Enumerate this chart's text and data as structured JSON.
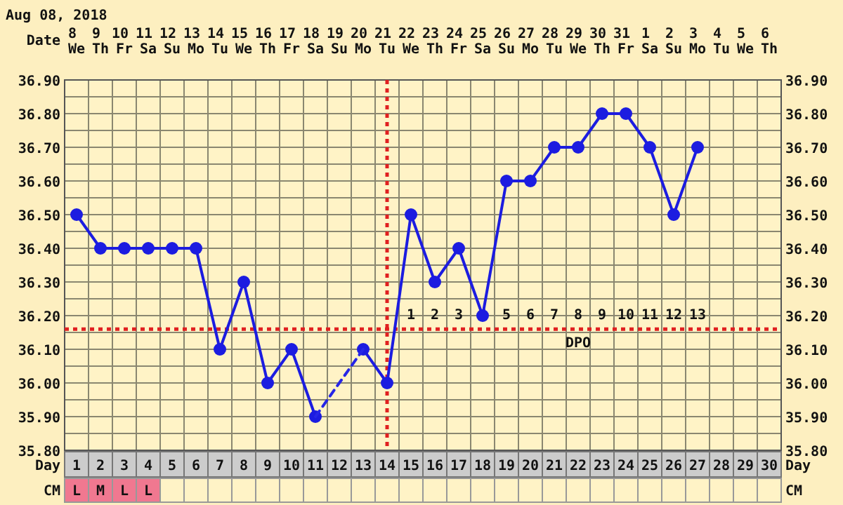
{
  "chart_data": {
    "type": "line",
    "title": "Aug 08, 2018",
    "xlabel": "Day",
    "x2label": "Date",
    "x": [
      1,
      2,
      3,
      4,
      5,
      6,
      7,
      8,
      9,
      10,
      11,
      12,
      13,
      14,
      15,
      16,
      17,
      18,
      19,
      20,
      21,
      22,
      23,
      24,
      25,
      26,
      27
    ],
    "xlim": [
      0.5,
      30.5
    ],
    "xticks": [
      1,
      2,
      3,
      4,
      5,
      6,
      7,
      8,
      9,
      10,
      11,
      12,
      13,
      14,
      15,
      16,
      17,
      18,
      19,
      20,
      21,
      22,
      23,
      24,
      25,
      26,
      27,
      28,
      29,
      30
    ],
    "x2lim": [
      "2018-08-07T12:00",
      "2018-09-06T12:00"
    ],
    "x2ticks": [
      {
        "value": "2018-08-08",
        "label": "8\nWe"
      },
      {
        "value": "2018-08-09",
        "label": "9\nTh"
      },
      {
        "value": "2018-08-10",
        "label": "10\nFr"
      },
      {
        "value": "2018-08-11",
        "label": "11\nSa"
      },
      {
        "value": "2018-08-12",
        "label": "12\nSu"
      },
      {
        "value": "2018-08-13",
        "label": "13\nMo"
      },
      {
        "value": "2018-08-14",
        "label": "14\nTu"
      },
      {
        "value": "2018-08-15",
        "label": "15\nWe"
      },
      {
        "value": "2018-08-16",
        "label": "16\nTh"
      },
      {
        "value": "2018-08-17",
        "label": "17\nFr"
      },
      {
        "value": "2018-08-18",
        "label": "18\nSa"
      },
      {
        "value": "2018-08-19",
        "label": "19\nSu"
      },
      {
        "value": "2018-08-20",
        "label": "20\nMo"
      },
      {
        "value": "2018-08-21",
        "label": "21\nTu"
      },
      {
        "value": "2018-08-22",
        "label": "22\nWe"
      },
      {
        "value": "2018-08-23",
        "label": "23\nTh"
      },
      {
        "value": "2018-08-24",
        "label": "24\nFr"
      },
      {
        "value": "2018-08-25",
        "label": "25\nSa"
      },
      {
        "value": "2018-08-26",
        "label": "26\nSu"
      },
      {
        "value": "2018-08-27",
        "label": "27\nMo"
      },
      {
        "value": "2018-08-28",
        "label": "28\nTu"
      },
      {
        "value": "2018-08-29",
        "label": "29\nWe"
      },
      {
        "value": "2018-08-30",
        "label": "30\nTh"
      },
      {
        "value": "2018-08-31",
        "label": "31\nFr"
      },
      {
        "value": "2018-09-01",
        "label": "1\nSa"
      },
      {
        "value": "2018-09-02",
        "label": "2\nSu"
      },
      {
        "value": "2018-09-03",
        "label": "3\nMo"
      },
      {
        "value": "2018-09-04",
        "label": "4\nTu"
      },
      {
        "value": "2018-09-05",
        "label": "5\nWe"
      },
      {
        "value": "2018-09-06",
        "label": "6\nTh"
      }
    ],
    "ylim": [
      35.8,
      36.9
    ],
    "yticks": [
      {
        "value": 35.8,
        "label": "35.80"
      },
      {
        "value": 35.85,
        "label": null
      },
      {
        "value": 35.9,
        "label": "35.90"
      },
      {
        "value": 35.95,
        "label": null
      },
      {
        "value": 36.0,
        "label": "36.00"
      },
      {
        "value": 36.05,
        "label": null
      },
      {
        "value": 36.1,
        "label": "36.10"
      },
      {
        "value": 36.15,
        "label": null
      },
      {
        "value": 36.2,
        "label": "36.20"
      },
      {
        "value": 36.25,
        "label": null
      },
      {
        "value": 36.3,
        "label": "36.30"
      },
      {
        "value": 36.35,
        "label": null
      },
      {
        "value": 36.4,
        "label": "36.40"
      },
      {
        "value": 36.45,
        "label": null
      },
      {
        "value": 36.5,
        "label": "36.50"
      },
      {
        "value": 36.55,
        "label": null
      },
      {
        "value": 36.6,
        "label": "36.60"
      },
      {
        "value": 36.65,
        "label": null
      },
      {
        "value": 36.7,
        "label": "36.70"
      },
      {
        "value": 36.75,
        "label": null
      },
      {
        "value": 36.8,
        "label": "36.80"
      },
      {
        "value": 36.85,
        "label": null
      },
      {
        "value": 36.9,
        "label": "36.90"
      }
    ],
    "y2lim": [
      35.8,
      36.9
    ],
    "y2ticks": [
      {
        "value": 35.8,
        "label": "35.80"
      },
      {
        "value": 35.9,
        "label": "35.90"
      },
      {
        "value": 36.0,
        "label": "36.00"
      },
      {
        "value": 36.1,
        "label": "36.10"
      },
      {
        "value": 36.2,
        "label": "36.20"
      },
      {
        "value": 36.3,
        "label": "36.30"
      },
      {
        "value": 36.4,
        "label": "36.40"
      },
      {
        "value": 36.5,
        "label": "36.50"
      },
      {
        "value": 36.6,
        "label": "36.60"
      },
      {
        "value": 36.7,
        "label": "36.70"
      },
      {
        "value": 36.8,
        "label": "36.80"
      },
      {
        "value": 36.9,
        "label": "36.90"
      }
    ],
    "grid": true,
    "series": [
      {
        "color": "#1c1ce0",
        "marker": "circle",
        "line_style": "solid",
        "values": [
          36.5,
          36.4,
          36.4,
          36.4,
          36.4,
          36.4,
          36.1,
          36.3,
          36.0,
          36.1,
          35.9,
          null,
          36.1,
          36.0,
          36.5,
          36.3,
          36.4,
          36.2,
          36.6,
          36.6,
          36.7,
          36.7,
          36.8,
          36.8,
          36.7,
          36.5,
          36.7
        ]
      },
      {
        "color": "#2626e6",
        "marker": "none",
        "line_style": "dashed",
        "x": [
          11,
          13
        ],
        "values": [
          35.9,
          36.1
        ]
      }
    ],
    "ref_lines": [
      {
        "axis": "y",
        "value": 36.16,
        "color": "#e02020",
        "line_style": "dotted"
      },
      {
        "axis": "x",
        "value": 14,
        "color": "#e02020",
        "line_style": "dotted"
      }
    ],
    "annotations": [
      "CM",
      "L M L L",
      "1 2 3 4 5 6 7 8 9 10 11 12 13",
      "DPO"
    ]
  }
}
